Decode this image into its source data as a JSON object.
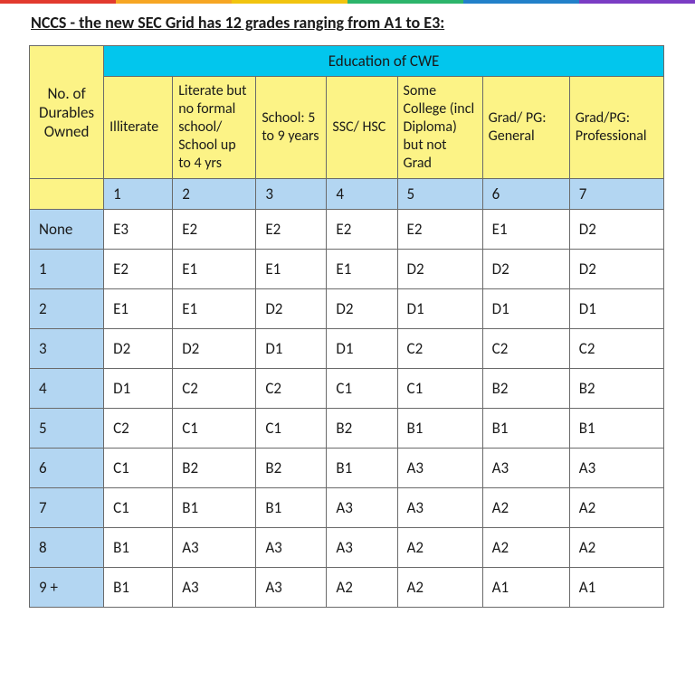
{
  "title": "NCCS - the new SEC Grid has 12 grades ranging from A1 to E3:",
  "top_bar_colors": [
    "#e23a2e",
    "#f6a623",
    "#f1c40f",
    "#2db56b",
    "#2280c9",
    "#7a3cc4"
  ],
  "colors": {
    "cyan": "#02c6ed",
    "yellow": "#fcf386",
    "light_blue": "#b3d6f2",
    "border": "#6a6a6a",
    "text": "#1a1a1a"
  },
  "header_top": "Education of CWE",
  "row_header": "No. of Durables Owned",
  "edu_labels": [
    "Illiterate",
    "Literate but no formal school/ School up to 4 yrs",
    "School: 5 to 9 years",
    "SSC/ HSC",
    "Some College (incl Diploma) but not Grad",
    "Grad/ PG: General",
    "Grad/PG: Professional"
  ],
  "edu_numbers": [
    "1",
    "2",
    "3",
    "4",
    "5",
    "6",
    "7"
  ],
  "row_labels": [
    "None",
    "1",
    "2",
    "3",
    "4",
    "5",
    "6",
    "7",
    "8",
    "9 +"
  ],
  "rows": [
    [
      "E3",
      "E2",
      "E2",
      "E2",
      "E2",
      "E1",
      "D2"
    ],
    [
      "E2",
      "E1",
      "E1",
      "E1",
      "D2",
      "D2",
      "D2"
    ],
    [
      "E1",
      "E1",
      "D2",
      "D2",
      "D1",
      "D1",
      "D1"
    ],
    [
      "D2",
      "D2",
      "D1",
      "D1",
      "C2",
      "C2",
      "C2"
    ],
    [
      "D1",
      "C2",
      "C2",
      "C1",
      "C1",
      "B2",
      "B2"
    ],
    [
      "C2",
      "C1",
      "C1",
      "B2",
      "B1",
      "B1",
      "B1"
    ],
    [
      "C1",
      "B2",
      "B2",
      "B1",
      "A3",
      "A3",
      "A3"
    ],
    [
      "C1",
      "B1",
      "B1",
      "A3",
      "A3",
      "A2",
      "A2"
    ],
    [
      "B1",
      "A3",
      "A3",
      "A3",
      "A2",
      "A2",
      "A2"
    ],
    [
      "B1",
      "A3",
      "A3",
      "A2",
      "A2",
      "A1",
      "A1"
    ]
  ]
}
